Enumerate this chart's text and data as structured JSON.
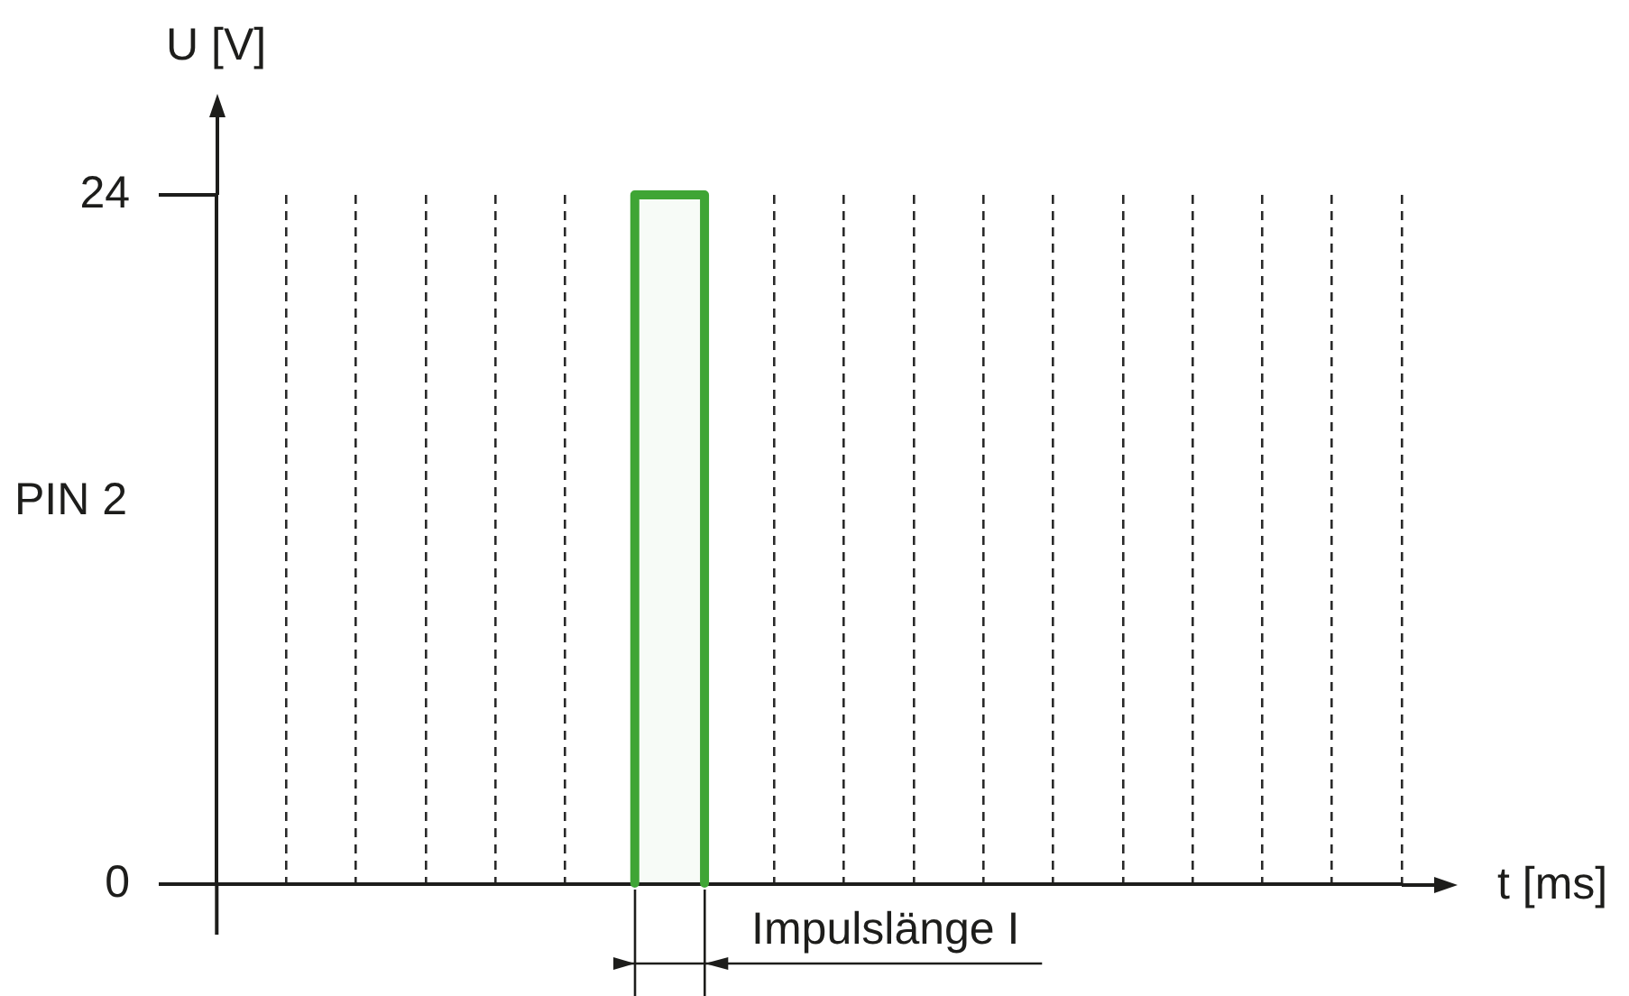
{
  "chart_data": {
    "type": "bar",
    "xlabel": "t [ms]",
    "ylabel": "U [V]",
    "categories": [
      null,
      null,
      null,
      null,
      null,
      null,
      null,
      null,
      null,
      null,
      null,
      null,
      null,
      null,
      null,
      null,
      null
    ],
    "values": [
      null,
      null,
      null,
      null,
      null,
      null,
      24,
      null,
      null,
      null,
      null,
      null,
      null,
      null,
      null,
      null,
      null
    ],
    "color": "#3fa535",
    "ylim": [
      0,
      24
    ],
    "yticks": [
      0,
      24
    ],
    "grid": "x",
    "tick_labels": "y",
    "annotations": [
      "PIN 2",
      "Impulslänge I"
    ]
  }
}
